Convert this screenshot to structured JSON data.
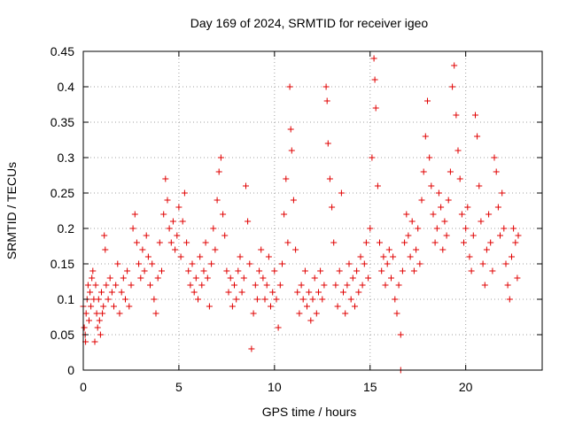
{
  "chart_data": {
    "type": "scatter",
    "title": "Day 169 of 2024, SRMTID for receiver igeo",
    "xlabel": "GPS time / hours",
    "ylabel": "SRMTID / TECUs",
    "xlim": [
      0,
      24
    ],
    "ylim": [
      0,
      0.45
    ],
    "x_ticks": [
      0,
      5,
      10,
      15,
      20
    ],
    "x_tick_labels": [
      "0",
      "5",
      "10",
      "15",
      "20"
    ],
    "y_ticks": [
      0,
      0.05,
      0.1,
      0.15,
      0.2,
      0.25,
      0.3,
      0.35,
      0.4,
      0.45
    ],
    "y_tick_labels": [
      "0",
      "0.05",
      "0.1",
      "0.15",
      "0.2",
      "0.25",
      "0.3",
      "0.35",
      "0.4",
      "0.45"
    ],
    "grid": true,
    "marker": "plus",
    "color": "#e00000",
    "series": [
      {
        "name": "SRMTID",
        "points": [
          [
            0.0,
            0.09
          ],
          [
            0.05,
            0.06
          ],
          [
            0.1,
            0.05
          ],
          [
            0.12,
            0.04
          ],
          [
            0.15,
            0.08
          ],
          [
            0.2,
            0.1
          ],
          [
            0.25,
            0.12
          ],
          [
            0.3,
            0.07
          ],
          [
            0.35,
            0.11
          ],
          [
            0.4,
            0.09
          ],
          [
            0.45,
            0.13
          ],
          [
            0.5,
            0.14
          ],
          [
            0.55,
            0.1
          ],
          [
            0.6,
            0.04
          ],
          [
            0.65,
            0.12
          ],
          [
            0.7,
            0.08
          ],
          [
            0.75,
            0.06
          ],
          [
            0.8,
            0.1
          ],
          [
            0.85,
            0.07
          ],
          [
            0.9,
            0.05
          ],
          [
            0.95,
            0.11
          ],
          [
            1.0,
            0.08
          ],
          [
            1.05,
            0.09
          ],
          [
            1.1,
            0.19
          ],
          [
            1.15,
            0.17
          ],
          [
            1.2,
            0.12
          ],
          [
            1.3,
            0.1
          ],
          [
            1.4,
            0.13
          ],
          [
            1.5,
            0.11
          ],
          [
            1.6,
            0.09
          ],
          [
            1.7,
            0.12
          ],
          [
            1.8,
            0.15
          ],
          [
            1.9,
            0.08
          ],
          [
            2.0,
            0.11
          ],
          [
            2.1,
            0.13
          ],
          [
            2.2,
            0.1
          ],
          [
            2.3,
            0.14
          ],
          [
            2.4,
            0.09
          ],
          [
            2.5,
            0.12
          ],
          [
            2.6,
            0.2
          ],
          [
            2.7,
            0.22
          ],
          [
            2.8,
            0.18
          ],
          [
            2.9,
            0.15
          ],
          [
            3.0,
            0.13
          ],
          [
            3.1,
            0.17
          ],
          [
            3.2,
            0.14
          ],
          [
            3.3,
            0.19
          ],
          [
            3.4,
            0.16
          ],
          [
            3.5,
            0.12
          ],
          [
            3.6,
            0.15
          ],
          [
            3.7,
            0.1
          ],
          [
            3.8,
            0.08
          ],
          [
            3.9,
            0.13
          ],
          [
            4.0,
            0.18
          ],
          [
            4.1,
            0.14
          ],
          [
            4.2,
            0.22
          ],
          [
            4.3,
            0.27
          ],
          [
            4.4,
            0.24
          ],
          [
            4.5,
            0.2
          ],
          [
            4.6,
            0.18
          ],
          [
            4.7,
            0.21
          ],
          [
            4.8,
            0.17
          ],
          [
            4.9,
            0.19
          ],
          [
            5.0,
            0.23
          ],
          [
            5.1,
            0.16
          ],
          [
            5.2,
            0.21
          ],
          [
            5.3,
            0.25
          ],
          [
            5.4,
            0.18
          ],
          [
            5.5,
            0.14
          ],
          [
            5.6,
            0.12
          ],
          [
            5.7,
            0.15
          ],
          [
            5.8,
            0.11
          ],
          [
            5.9,
            0.13
          ],
          [
            6.0,
            0.1
          ],
          [
            6.1,
            0.16
          ],
          [
            6.2,
            0.12
          ],
          [
            6.3,
            0.14
          ],
          [
            6.4,
            0.18
          ],
          [
            6.5,
            0.13
          ],
          [
            6.6,
            0.09
          ],
          [
            6.7,
            0.15
          ],
          [
            6.8,
            0.2
          ],
          [
            6.9,
            0.17
          ],
          [
            7.0,
            0.24
          ],
          [
            7.1,
            0.28
          ],
          [
            7.2,
            0.3
          ],
          [
            7.3,
            0.22
          ],
          [
            7.4,
            0.19
          ],
          [
            7.5,
            0.14
          ],
          [
            7.6,
            0.11
          ],
          [
            7.7,
            0.13
          ],
          [
            7.8,
            0.09
          ],
          [
            7.9,
            0.12
          ],
          [
            8.0,
            0.1
          ],
          [
            8.1,
            0.14
          ],
          [
            8.2,
            0.16
          ],
          [
            8.3,
            0.11
          ],
          [
            8.4,
            0.13
          ],
          [
            8.5,
            0.26
          ],
          [
            8.6,
            0.21
          ],
          [
            8.7,
            0.15
          ],
          [
            8.8,
            0.03
          ],
          [
            8.9,
            0.08
          ],
          [
            9.0,
            0.12
          ],
          [
            9.1,
            0.1
          ],
          [
            9.2,
            0.14
          ],
          [
            9.3,
            0.17
          ],
          [
            9.4,
            0.13
          ],
          [
            9.5,
            0.1
          ],
          [
            9.6,
            0.12
          ],
          [
            9.7,
            0.16
          ],
          [
            9.8,
            0.09
          ],
          [
            9.9,
            0.11
          ],
          [
            10.0,
            0.14
          ],
          [
            10.1,
            0.1
          ],
          [
            10.2,
            0.06
          ],
          [
            10.3,
            0.12
          ],
          [
            10.4,
            0.15
          ],
          [
            10.5,
            0.22
          ],
          [
            10.6,
            0.27
          ],
          [
            10.7,
            0.18
          ],
          [
            10.8,
            0.4
          ],
          [
            10.85,
            0.34
          ],
          [
            10.9,
            0.31
          ],
          [
            11.0,
            0.24
          ],
          [
            11.1,
            0.17
          ],
          [
            11.2,
            0.11
          ],
          [
            11.3,
            0.08
          ],
          [
            11.4,
            0.12
          ],
          [
            11.5,
            0.1
          ],
          [
            11.6,
            0.14
          ],
          [
            11.7,
            0.09
          ],
          [
            11.8,
            0.11
          ],
          [
            11.9,
            0.07
          ],
          [
            12.0,
            0.1
          ],
          [
            12.1,
            0.13
          ],
          [
            12.2,
            0.08
          ],
          [
            12.3,
            0.11
          ],
          [
            12.4,
            0.14
          ],
          [
            12.5,
            0.1
          ],
          [
            12.6,
            0.12
          ],
          [
            12.7,
            0.4
          ],
          [
            12.75,
            0.38
          ],
          [
            12.8,
            0.32
          ],
          [
            12.9,
            0.27
          ],
          [
            13.0,
            0.23
          ],
          [
            13.1,
            0.18
          ],
          [
            13.2,
            0.12
          ],
          [
            13.3,
            0.09
          ],
          [
            13.4,
            0.14
          ],
          [
            13.5,
            0.25
          ],
          [
            13.6,
            0.11
          ],
          [
            13.7,
            0.08
          ],
          [
            13.8,
            0.12
          ],
          [
            13.9,
            0.15
          ],
          [
            14.0,
            0.1
          ],
          [
            14.1,
            0.13
          ],
          [
            14.2,
            0.09
          ],
          [
            14.3,
            0.14
          ],
          [
            14.4,
            0.11
          ],
          [
            14.5,
            0.16
          ],
          [
            14.6,
            0.12
          ],
          [
            14.7,
            0.15
          ],
          [
            14.8,
            0.18
          ],
          [
            14.9,
            0.13
          ],
          [
            15.0,
            0.2
          ],
          [
            15.1,
            0.3
          ],
          [
            15.2,
            0.44
          ],
          [
            15.25,
            0.41
          ],
          [
            15.3,
            0.37
          ],
          [
            15.4,
            0.26
          ],
          [
            15.5,
            0.18
          ],
          [
            15.6,
            0.14
          ],
          [
            15.7,
            0.16
          ],
          [
            15.8,
            0.12
          ],
          [
            15.9,
            0.15
          ],
          [
            16.0,
            0.17
          ],
          [
            16.1,
            0.13
          ],
          [
            16.2,
            0.16
          ],
          [
            16.3,
            0.1
          ],
          [
            16.4,
            0.08
          ],
          [
            16.5,
            0.12
          ],
          [
            16.6,
            0.05
          ],
          [
            16.7,
            0.14
          ],
          [
            16.8,
            0.18
          ],
          [
            16.9,
            0.22
          ],
          [
            17.0,
            0.19
          ],
          [
            17.1,
            0.16
          ],
          [
            17.2,
            0.21
          ],
          [
            17.3,
            0.14
          ],
          [
            17.4,
            0.17
          ],
          [
            17.5,
            0.2
          ],
          [
            17.6,
            0.15
          ],
          [
            17.7,
            0.24
          ],
          [
            17.8,
            0.28
          ],
          [
            17.9,
            0.33
          ],
          [
            18.0,
            0.38
          ],
          [
            18.1,
            0.3
          ],
          [
            18.2,
            0.26
          ],
          [
            18.3,
            0.22
          ],
          [
            18.4,
            0.18
          ],
          [
            18.5,
            0.2
          ],
          [
            18.6,
            0.25
          ],
          [
            18.7,
            0.23
          ],
          [
            18.8,
            0.17
          ],
          [
            18.9,
            0.21
          ],
          [
            19.0,
            0.19
          ],
          [
            19.1,
            0.24
          ],
          [
            19.2,
            0.28
          ],
          [
            19.3,
            0.4
          ],
          [
            19.4,
            0.43
          ],
          [
            19.5,
            0.36
          ],
          [
            19.6,
            0.31
          ],
          [
            19.7,
            0.27
          ],
          [
            19.8,
            0.22
          ],
          [
            19.9,
            0.18
          ],
          [
            20.0,
            0.2
          ],
          [
            20.1,
            0.23
          ],
          [
            20.2,
            0.16
          ],
          [
            20.3,
            0.14
          ],
          [
            20.4,
            0.19
          ],
          [
            20.5,
            0.36
          ],
          [
            20.6,
            0.33
          ],
          [
            20.7,
            0.26
          ],
          [
            20.8,
            0.21
          ],
          [
            20.9,
            0.15
          ],
          [
            21.0,
            0.12
          ],
          [
            21.1,
            0.17
          ],
          [
            21.2,
            0.22
          ],
          [
            21.3,
            0.18
          ],
          [
            21.4,
            0.14
          ],
          [
            21.5,
            0.3
          ],
          [
            21.6,
            0.28
          ],
          [
            21.7,
            0.23
          ],
          [
            21.8,
            0.19
          ],
          [
            21.9,
            0.25
          ],
          [
            22.0,
            0.2
          ],
          [
            22.1,
            0.15
          ],
          [
            22.2,
            0.12
          ],
          [
            22.3,
            0.1
          ],
          [
            22.4,
            0.16
          ],
          [
            22.5,
            0.2
          ],
          [
            22.6,
            0.18
          ],
          [
            22.7,
            0.13
          ],
          [
            22.75,
            0.19
          ],
          [
            16.6,
            0.0
          ]
        ]
      }
    ]
  }
}
